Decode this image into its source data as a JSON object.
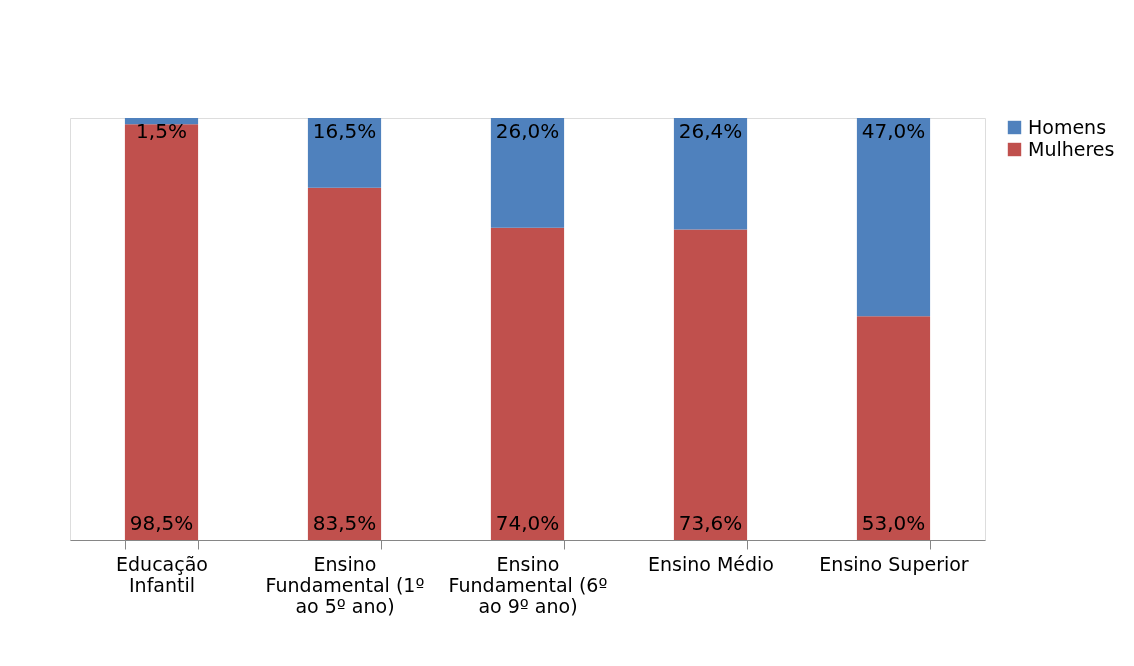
{
  "chart_data": {
    "type": "bar",
    "stacked": true,
    "categories": [
      "Educação Infantil",
      "Ensino Fundamental (1º ao 5º ano)",
      "Ensino Fundamental (6º ao 9º ano)",
      "Ensino Médio",
      "Ensino Superior"
    ],
    "series": [
      {
        "name": "Mulheres",
        "color": "#c0504d",
        "values": [
          98.5,
          83.5,
          74.0,
          73.6,
          53.0
        ],
        "value_labels": [
          "98,5%",
          "83,5%",
          "74,0%",
          "73,6%",
          "53,0%"
        ]
      },
      {
        "name": "Homens",
        "color": "#4f81bd",
        "values": [
          1.5,
          16.5,
          26.0,
          26.4,
          47.0
        ],
        "value_labels": [
          "1,5%",
          "16,5%",
          "26,0%",
          "26,4%",
          "47,0%"
        ]
      }
    ],
    "legend": "right",
    "tick_labels": "x",
    "grid": false
  }
}
